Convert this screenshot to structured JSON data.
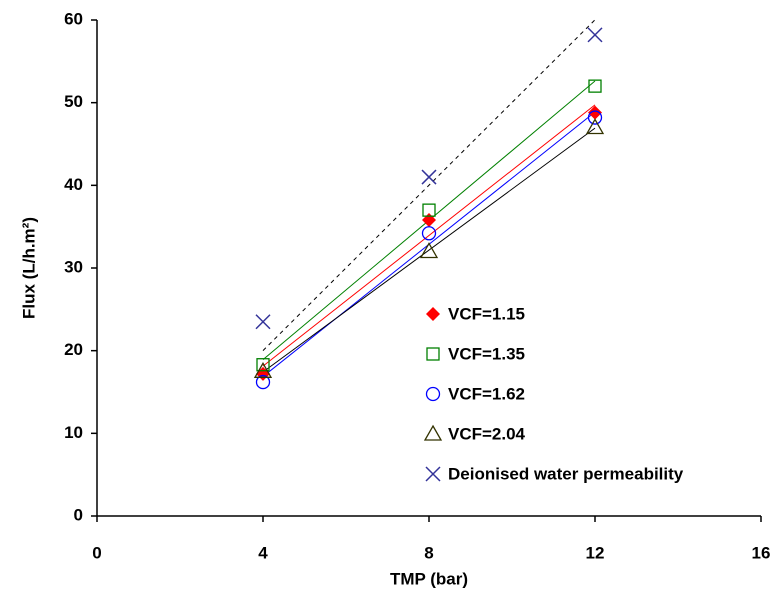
{
  "chart_data": {
    "type": "scatter",
    "x_label": "TMP (bar)",
    "y_label": "Flux (L/h.m²)",
    "xlim": [
      0,
      16
    ],
    "xticks": [
      0,
      4,
      8,
      12,
      16
    ],
    "ylim": [
      0,
      60
    ],
    "yticks": [
      0,
      10,
      20,
      30,
      40,
      50,
      60
    ],
    "grid": false,
    "legend_position": "lower right",
    "x": [
      4,
      8,
      12
    ],
    "series": [
      {
        "name": "VCF=1.15",
        "color": "#ff0000",
        "marker": "diamond",
        "trendline": "linear",
        "line_color": "#ff0000",
        "line_style": "solid",
        "values": [
          17.2,
          35.8,
          48.8
        ]
      },
      {
        "name": "VCF=1.35",
        "color": "#008000",
        "marker": "square",
        "trendline": "linear",
        "line_color": "#008000",
        "line_style": "solid",
        "values": [
          18.3,
          37,
          52
        ]
      },
      {
        "name": "VCF=1.62",
        "color": "#0000ff",
        "marker": "circle",
        "trendline": "linear",
        "line_color": "#0000ff",
        "line_style": "solid",
        "values": [
          16.2,
          34.2,
          48.2
        ]
      },
      {
        "name": "VCF=2.04",
        "color": "#333300",
        "marker": "triangle",
        "trendline": "linear",
        "line_color": "#000000",
        "line_style": "solid",
        "values": [
          17.5,
          32,
          47
        ]
      },
      {
        "name": "Deionised water permeability",
        "color": "#333399",
        "marker": "x",
        "trendline": "linear-through-origin",
        "line_color": "#000000",
        "line_style": "dashed",
        "values": [
          23.5,
          41,
          58.2
        ]
      }
    ]
  }
}
